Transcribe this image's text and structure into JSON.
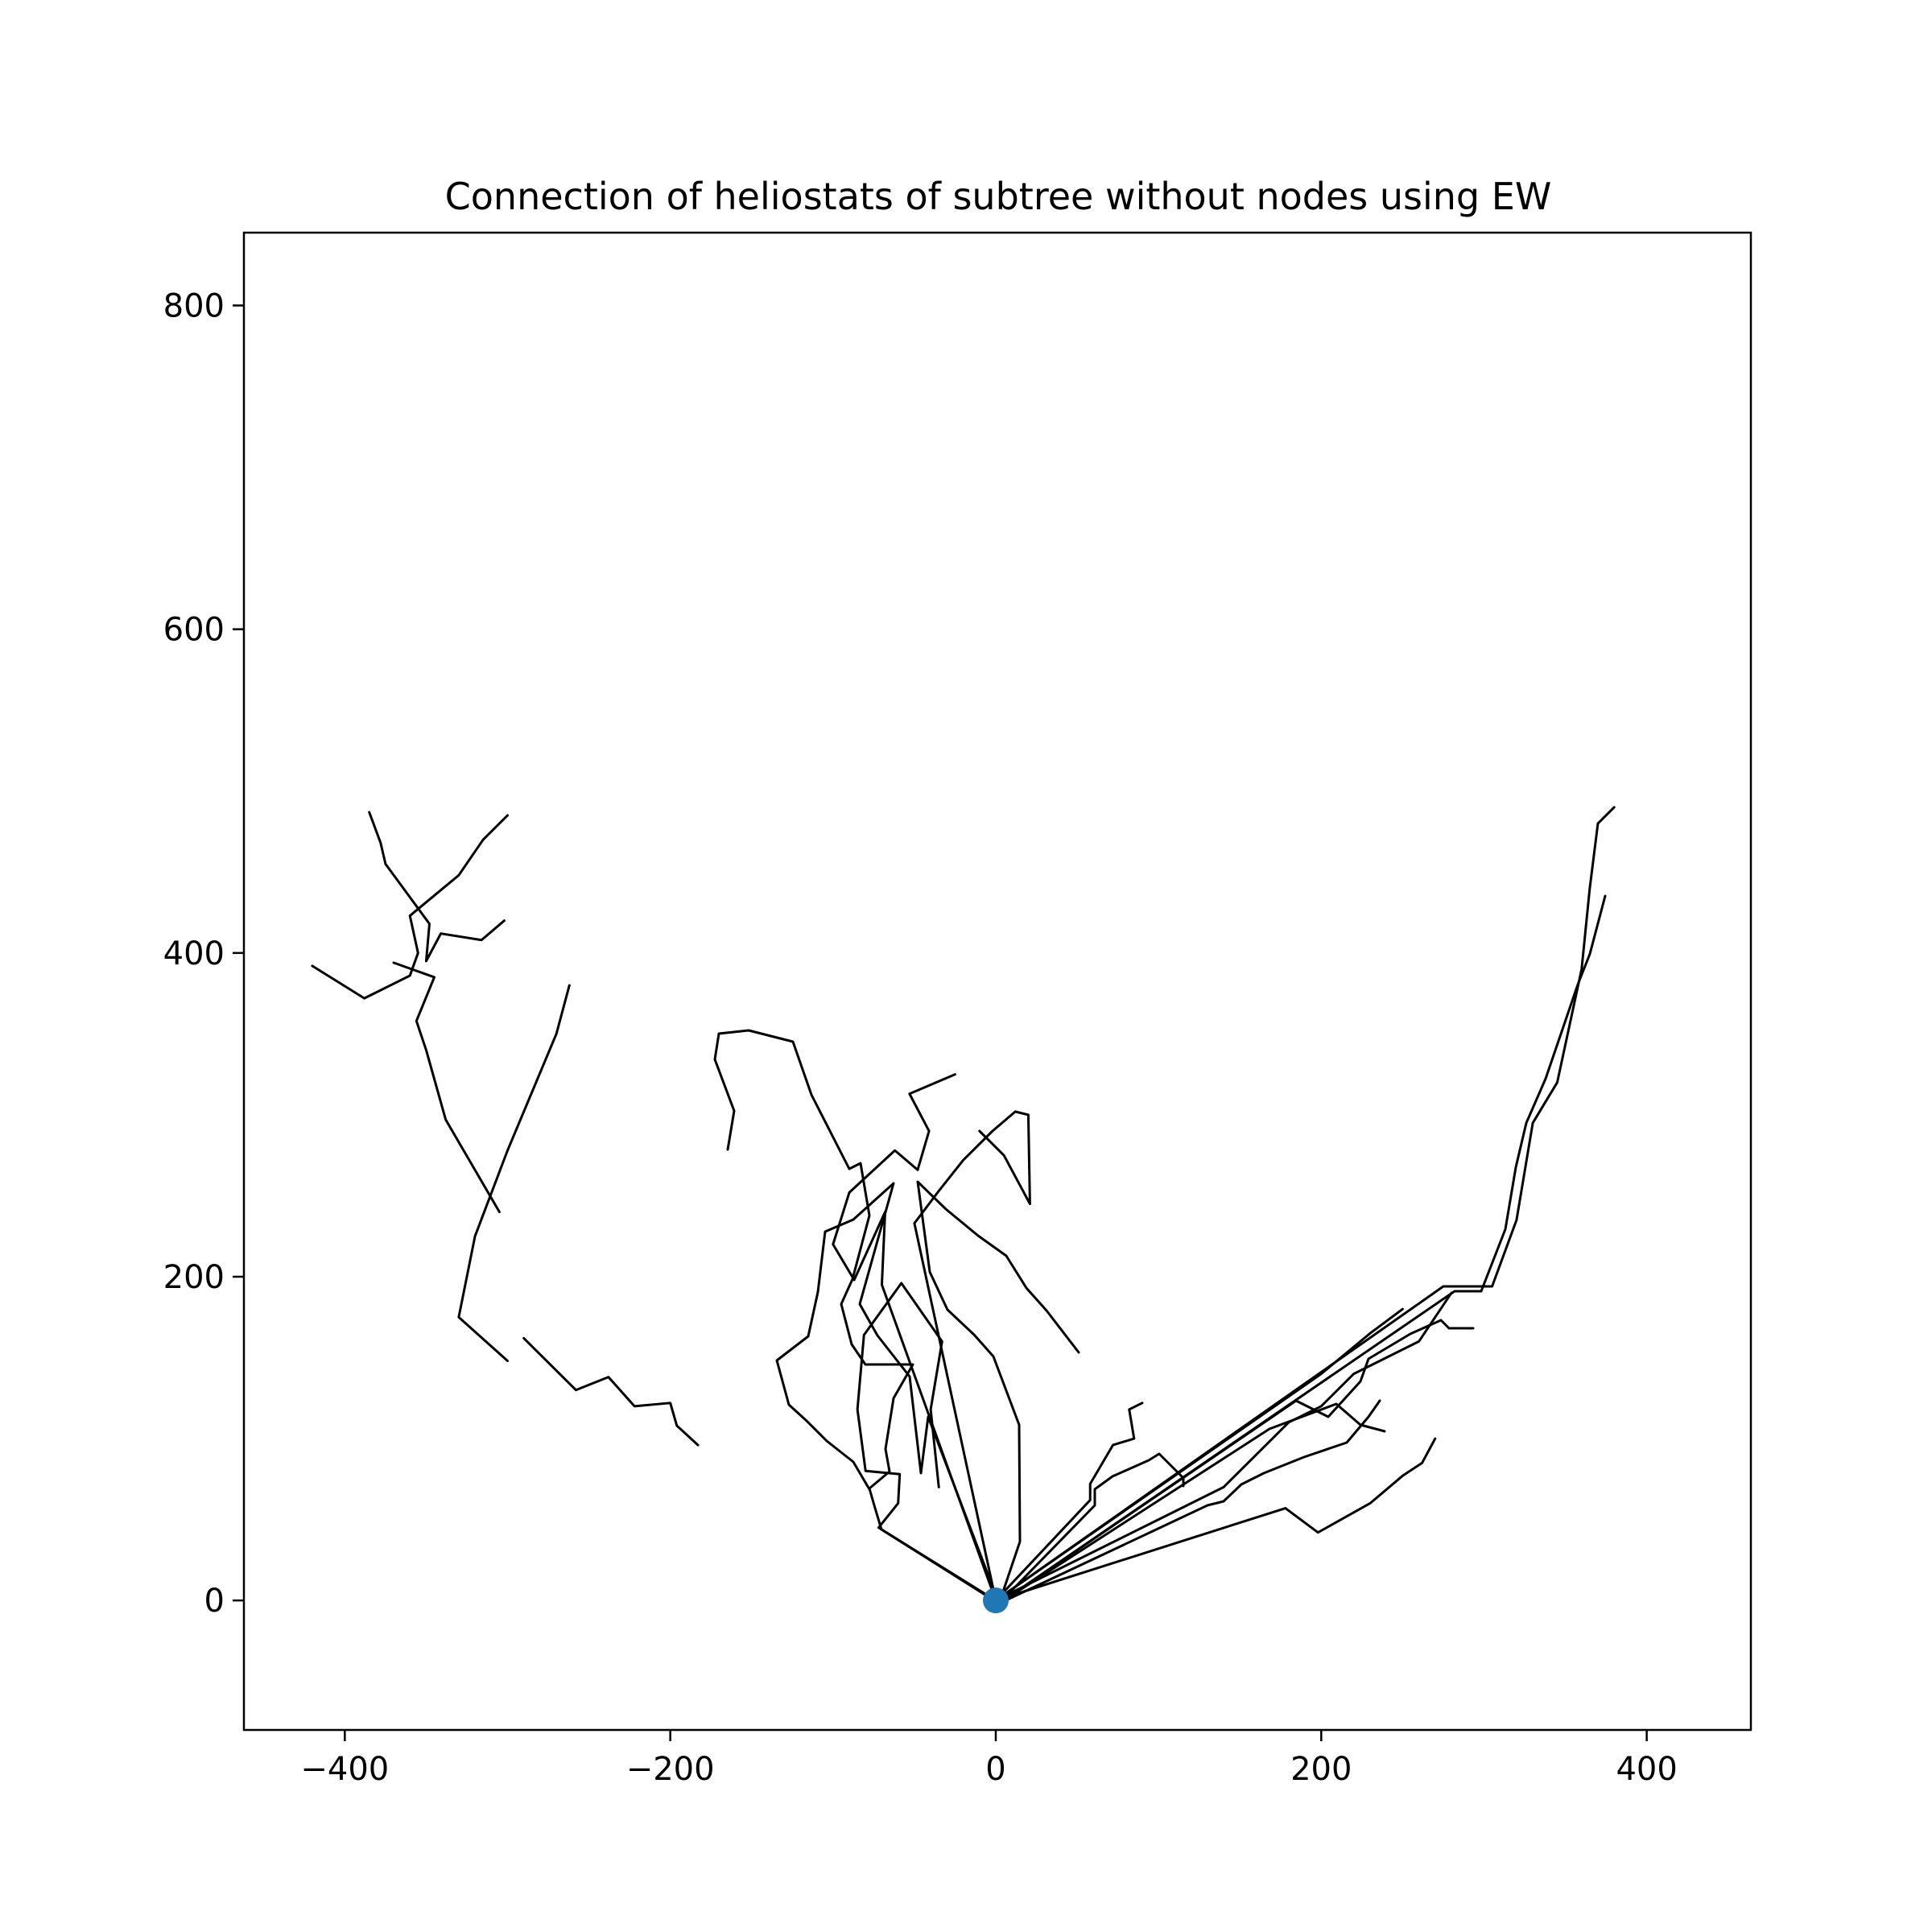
{
  "chart_data": {
    "type": "line",
    "title": "Connection of heliostats of subtree without nodes using EW",
    "xlabel": "",
    "ylabel": "",
    "xlim": [
      -462,
      464
    ],
    "ylim": [
      -80,
      845
    ],
    "xticks": [
      -400,
      -200,
      0,
      200,
      400
    ],
    "yticks": [
      0,
      200,
      400,
      600,
      800
    ],
    "xtick_labels": [
      "−400",
      "−200",
      "0",
      "200",
      "400"
    ],
    "ytick_labels": [
      "0",
      "200",
      "400",
      "600",
      "800"
    ],
    "grid": false,
    "legend": "none",
    "line_color": "#000000",
    "root_color": "#1f77b4",
    "root": [
      0,
      0
    ],
    "branches": [
      [
        [
          0,
          0
        ],
        [
          -72,
          45
        ],
        [
          -60,
          60
        ],
        [
          -59,
          78
        ],
        [
          -80,
          80
        ],
        [
          -85,
          118
        ],
        [
          -81,
          164
        ],
        [
          -58,
          196
        ],
        [
          -33,
          160
        ],
        [
          -40,
          118
        ],
        [
          -35,
          70
        ]
      ],
      [
        [
          0,
          0
        ],
        [
          -70,
          195
        ],
        [
          -68,
          240
        ],
        [
          -87,
          198
        ],
        [
          -100,
          220
        ],
        [
          -90,
          252
        ],
        [
          -62,
          278
        ],
        [
          -48,
          266
        ],
        [
          -41,
          290
        ],
        [
          -53,
          313
        ],
        [
          -25,
          325
        ]
      ],
      [
        [
          0,
          0
        ],
        [
          -50,
          233
        ],
        [
          -35,
          253
        ],
        [
          -20,
          272
        ],
        [
          -2,
          290
        ],
        [
          12,
          302
        ],
        [
          20,
          300
        ],
        [
          21,
          245
        ],
        [
          5,
          275
        ],
        [
          -10,
          290
        ]
      ],
      [
        [
          0,
          0
        ],
        [
          58,
          62
        ],
        [
          58,
          72
        ],
        [
          72,
          96
        ],
        [
          85,
          100
        ],
        [
          82,
          118
        ],
        [
          90,
          122
        ]
      ],
      [
        [
          0,
          0
        ],
        [
          178,
          57
        ],
        [
          198,
          42
        ],
        [
          230,
          60
        ],
        [
          250,
          77
        ],
        [
          262,
          85
        ],
        [
          270,
          100
        ]
      ],
      [
        [
          0,
          0
        ],
        [
          275,
          194
        ],
        [
          305,
          194
        ],
        [
          320,
          235
        ],
        [
          330,
          295
        ],
        [
          345,
          320
        ],
        [
          360,
          390
        ],
        [
          365,
          440
        ],
        [
          370,
          480
        ],
        [
          380,
          490
        ]
      ],
      [
        [
          0,
          0
        ],
        [
          100,
          50
        ],
        [
          140,
          70
        ],
        [
          160,
          90
        ],
        [
          180,
          110
        ],
        [
          200,
          120
        ],
        [
          220,
          140
        ],
        [
          240,
          150
        ],
        [
          260,
          160
        ],
        [
          280,
          190
        ]
      ],
      [
        [
          0,
          0
        ],
        [
          200,
          140
        ],
        [
          230,
          165
        ],
        [
          250,
          180
        ]
      ],
      [
        [
          -290,
          162
        ],
        [
          -258,
          130
        ],
        [
          -238,
          138
        ],
        [
          -222,
          120
        ],
        [
          -200,
          122
        ],
        [
          -196,
          108
        ],
        [
          -183,
          96
        ]
      ],
      [
        [
          -300,
          148
        ],
        [
          -330,
          175
        ],
        [
          -320,
          225
        ],
        [
          -300,
          278
        ],
        [
          -270,
          350
        ],
        [
          -262,
          380
        ]
      ],
      [
        [
          -305,
          240
        ],
        [
          -338,
          297
        ],
        [
          -350,
          340
        ],
        [
          -356,
          358
        ],
        [
          -345,
          385
        ],
        [
          -370,
          394
        ]
      ],
      [
        [
          -385,
          487
        ],
        [
          -378,
          468
        ],
        [
          -375,
          455
        ],
        [
          -348,
          418
        ],
        [
          -350,
          395
        ],
        [
          -341,
          412
        ],
        [
          -316,
          408
        ],
        [
          -302,
          420
        ]
      ],
      [
        [
          -420,
          392
        ],
        [
          -388,
          372
        ],
        [
          -360,
          386
        ],
        [
          -355,
          400
        ],
        [
          -360,
          423
        ],
        [
          -330,
          448
        ],
        [
          -315,
          470
        ],
        [
          -300,
          485
        ]
      ]
    ],
    "paths": [
      "M 1241 1992 L 1095 1900 L 1086 1870 L 1080 1849 L 1105 1828 L 1100 1800 L 1110 1737 L 1134 1695 L 1075 1695 L 1058 1670 L 1045 1620 L 1059 1589 L 1080 1510 L 1069 1445 L 1055 1452 L 1008 1360 L 985 1294 L 930 1280 L 893 1284 L 888 1316 L 912 1380 L 904 1428",
      "M 1241 1992 L 1153 1760 L 1144 1830 L 1130 1710 L 1090 1659 L 1068 1620 L 1110 1470 L 1060 1515 L 1025 1530 L 1016 1605 L 1004 1660 L 965 1690 L 980 1745 L 1002 1765 L 1027 1790 L 1060 1816 L 1080 1850",
      "M 1241 1992 L 1267 1915 L 1266 1770 L 1234 1685 L 1210 1658 L 1177 1627 L 1155 1580 L 1140 1468 L 1175 1502 L 1215 1535 L 1250 1560 L 1275 1600 L 1300 1628 L 1340 1680",
      "M 1241 1992 L 1360 1870 L 1360 1850 L 1382 1834 L 1427 1814 L 1440 1806 L 1470 1836 L 1470 1846",
      "M 1241 1992 L 1500 1870 L 1520 1865 L 1542 1844 L 1570 1830 L 1620 1810 L 1673 1792 L 1700 1760 L 1714 1740",
      "M 1241 1992 L 1807 1604 L 1840 1604 L 1870 1527 L 1883 1450 L 1896 1395 L 1920 1340 L 1960 1223 L 1975 1185 L 1994 1113",
      "M 1241 1992 L 1610 1740 L 1650 1760 L 1690 1716 L 1700 1688 L 1752 1657 L 1790 1640 L 1800 1650 L 1830 1650",
      "M 1241 1992 L 1577 1775 L 1660 1744 L 1690 1770 L 1720 1778"
    ],
    "x_axis_values_note": "",
    "y_axis_values_note": ""
  }
}
